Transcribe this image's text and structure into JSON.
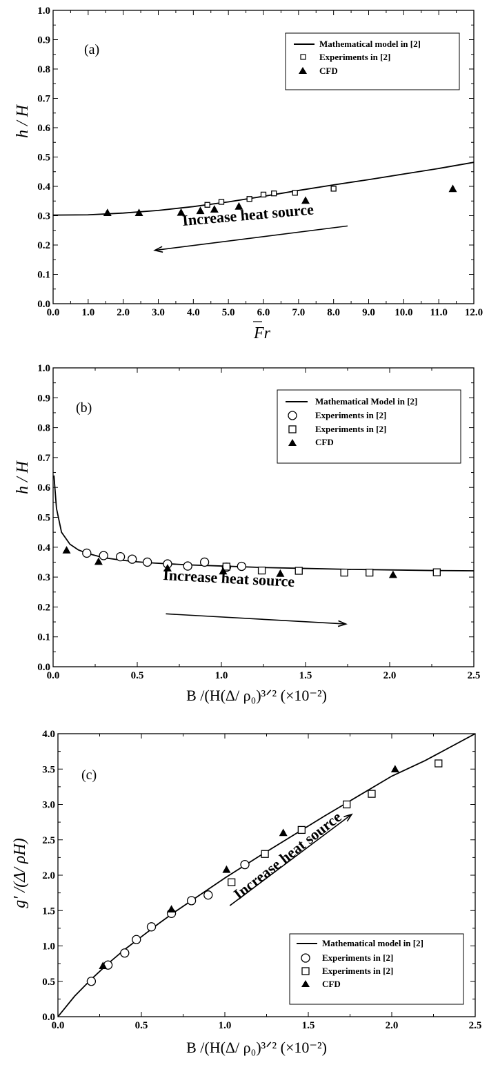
{
  "chart_data": [
    {
      "type": "scatter",
      "panel_label": "(a)",
      "xlabel": "Fr",
      "ylabel": "h / H",
      "xlim": [
        0,
        12
      ],
      "ylim": [
        0,
        1.0
      ],
      "x_ticks": [
        "0.0",
        "1.0",
        "2.0",
        "3.0",
        "4.0",
        "5.0",
        "6.0",
        "7.0",
        "8.0",
        "9.0",
        "10.0",
        "11.0",
        "12.0"
      ],
      "y_ticks": [
        "0.0",
        "0.1",
        "0.2",
        "0.3",
        "0.4",
        "0.5",
        "0.6",
        "0.7",
        "0.8",
        "0.9",
        "1.0"
      ],
      "legend_position": "top-right",
      "annotation": {
        "text": "Increase heat source",
        "direction": "left",
        "from": [
          8.4,
          0.265
        ],
        "to": [
          2.9,
          0.182
        ]
      },
      "series": [
        {
          "name": "Mathematical model in [2]",
          "kind": "line",
          "x": [
            0,
            1,
            2,
            3,
            4,
            5,
            6,
            7,
            8,
            9,
            10,
            11,
            12
          ],
          "y": [
            0.302,
            0.303,
            0.309,
            0.318,
            0.331,
            0.347,
            0.366,
            0.386,
            0.405,
            0.423,
            0.442,
            0.461,
            0.482
          ]
        },
        {
          "name": "Experiments in [2]",
          "kind": "square-open",
          "x": [
            4.4,
            4.8,
            5.6,
            6.0,
            6.3,
            6.9,
            8.0
          ],
          "y": [
            0.337,
            0.347,
            0.357,
            0.372,
            0.376,
            0.378,
            0.392
          ]
        },
        {
          "name": "CFD",
          "kind": "triangle-filled",
          "x": [
            1.55,
            2.45,
            3.65,
            4.2,
            4.6,
            5.3,
            7.2,
            11.4
          ],
          "y": [
            0.31,
            0.31,
            0.311,
            0.317,
            0.322,
            0.332,
            0.352,
            0.392
          ]
        }
      ]
    },
    {
      "type": "scatter",
      "panel_label": "(b)",
      "xlabel": "B /(H(Δ/ ρ₀)³ᐟ² (×10⁻²)",
      "ylabel": "h / H",
      "xlim": [
        0,
        2.5
      ],
      "ylim": [
        0,
        1.0
      ],
      "x_ticks": [
        "0.0",
        "0.5",
        "1.0",
        "1.5",
        "2.0",
        "2.5"
      ],
      "y_ticks": [
        "0.0",
        "0.1",
        "0.2",
        "0.3",
        "0.4",
        "0.5",
        "0.6",
        "0.7",
        "0.8",
        "0.9",
        "1.0"
      ],
      "legend_position": "top-right",
      "annotation": {
        "text": "Increase heat source",
        "direction": "right",
        "from": [
          0.67,
          0.177
        ],
        "to": [
          1.74,
          0.143
        ]
      },
      "series": [
        {
          "name": "Mathematical Model in [2]",
          "kind": "line",
          "x": [
            0.005,
            0.02,
            0.05,
            0.1,
            0.15,
            0.2,
            0.3,
            0.4,
            0.5,
            0.6,
            0.8,
            1.0,
            1.25,
            1.5,
            1.75,
            2.0,
            2.25,
            2.5
          ],
          "y": [
            0.64,
            0.53,
            0.45,
            0.41,
            0.391,
            0.38,
            0.365,
            0.357,
            0.351,
            0.347,
            0.341,
            0.337,
            0.332,
            0.329,
            0.326,
            0.324,
            0.322,
            0.321
          ]
        },
        {
          "name": "Experiments in [2]",
          "kind": "circle-open",
          "x": [
            0.2,
            0.3,
            0.4,
            0.47,
            0.56,
            0.68,
            0.8,
            0.9,
            1.03,
            1.12
          ],
          "y": [
            0.38,
            0.372,
            0.368,
            0.36,
            0.35,
            0.344,
            0.337,
            0.35,
            0.333,
            0.336
          ]
        },
        {
          "name": "Experiments in [2]",
          "kind": "square-open",
          "x": [
            1.03,
            1.24,
            1.46,
            1.73,
            1.88,
            2.28
          ],
          "y": [
            0.335,
            0.322,
            0.321,
            0.315,
            0.315,
            0.316
          ]
        },
        {
          "name": "CFD",
          "kind": "triangle-filled",
          "x": [
            0.08,
            0.27,
            0.68,
            1.01,
            1.35,
            2.02
          ],
          "y": [
            0.39,
            0.352,
            0.33,
            0.32,
            0.312,
            0.308
          ]
        }
      ]
    },
    {
      "type": "scatter",
      "panel_label": "(c)",
      "xlabel": "B /(H(Δ/ ρ₀)³ᐟ² (×10⁻²)",
      "ylabel": "g′ /(Δ/ ρH)",
      "xlim": [
        0,
        2.5
      ],
      "ylim": [
        0,
        4.0
      ],
      "x_ticks": [
        "0.0",
        "0.5",
        "1.0",
        "1.5",
        "2.0",
        "2.5"
      ],
      "y_ticks": [
        "0.0",
        "0.5",
        "1.0",
        "1.5",
        "2.0",
        "2.5",
        "3.0",
        "3.5",
        "4.0"
      ],
      "legend_position": "bottom-right",
      "annotation": {
        "text": "Increase heat source",
        "direction": "up-right",
        "from": [
          1.03,
          1.57
        ],
        "to": [
          1.76,
          2.86
        ]
      },
      "series": [
        {
          "name": "Mathematical model in [2]",
          "kind": "line",
          "x": [
            0,
            0.1,
            0.2,
            0.3,
            0.4,
            0.5,
            0.6,
            0.7,
            0.8,
            0.9,
            1.0,
            1.2,
            1.4,
            1.6,
            1.8,
            2.0,
            2.2,
            2.5
          ],
          "y": [
            0,
            0.29,
            0.53,
            0.75,
            0.95,
            1.13,
            1.31,
            1.48,
            1.64,
            1.8,
            1.96,
            2.26,
            2.55,
            2.84,
            3.12,
            3.4,
            3.62,
            4.0
          ]
        },
        {
          "name": "Experiments in [2]",
          "kind": "circle-open",
          "x": [
            0.2,
            0.3,
            0.4,
            0.47,
            0.56,
            0.68,
            0.8,
            0.9,
            1.12
          ],
          "y": [
            0.5,
            0.73,
            0.9,
            1.09,
            1.27,
            1.46,
            1.64,
            1.72,
            2.15
          ]
        },
        {
          "name": "Experiments in [2]",
          "kind": "square-open",
          "x": [
            1.04,
            1.24,
            1.46,
            1.73,
            1.88,
            2.28
          ],
          "y": [
            1.9,
            2.3,
            2.64,
            3.0,
            3.15,
            3.58
          ]
        },
        {
          "name": "CFD",
          "kind": "triangle-filled",
          "x": [
            0.27,
            0.68,
            1.01,
            1.35,
            2.02
          ],
          "y": [
            0.72,
            1.52,
            2.08,
            2.6,
            3.5
          ]
        }
      ]
    }
  ]
}
